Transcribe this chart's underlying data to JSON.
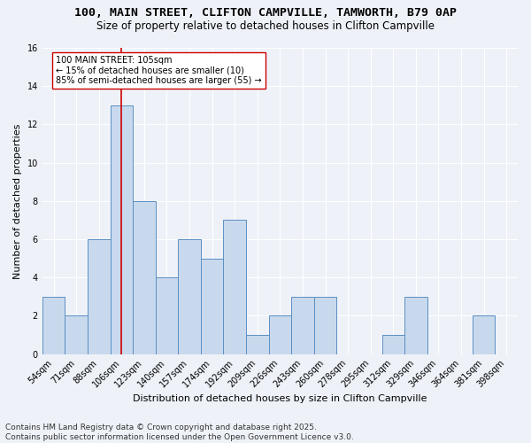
{
  "title1": "100, MAIN STREET, CLIFTON CAMPVILLE, TAMWORTH, B79 0AP",
  "title2": "Size of property relative to detached houses in Clifton Campville",
  "xlabel": "Distribution of detached houses by size in Clifton Campville",
  "ylabel": "Number of detached properties",
  "footnote1": "Contains HM Land Registry data © Crown copyright and database right 2025.",
  "footnote2": "Contains public sector information licensed under the Open Government Licence v3.0.",
  "bin_labels": [
    "54sqm",
    "71sqm",
    "88sqm",
    "106sqm",
    "123sqm",
    "140sqm",
    "157sqm",
    "174sqm",
    "192sqm",
    "209sqm",
    "226sqm",
    "243sqm",
    "260sqm",
    "278sqm",
    "295sqm",
    "312sqm",
    "329sqm",
    "346sqm",
    "364sqm",
    "381sqm",
    "398sqm"
  ],
  "bin_values": [
    3,
    2,
    6,
    13,
    8,
    4,
    6,
    5,
    7,
    1,
    2,
    3,
    3,
    0,
    0,
    1,
    3,
    0,
    0,
    2,
    0
  ],
  "bar_color": "#c9d9ed",
  "bar_edge_color": "#5a8fc3",
  "vline_color": "#cc0000",
  "annotation_text": "100 MAIN STREET: 105sqm\n← 15% of detached houses are smaller (10)\n85% of semi-detached houses are larger (55) →",
  "annotation_box_color": "#ffffff",
  "annotation_box_edge": "#cc0000",
  "ylim": [
    0,
    16
  ],
  "yticks": [
    0,
    2,
    4,
    6,
    8,
    10,
    12,
    14,
    16
  ],
  "background_color": "#eef2f8",
  "grid_color": "#ffffff",
  "title_fontsize": 9.5,
  "subtitle_fontsize": 8.5,
  "axis_label_fontsize": 8,
  "tick_fontsize": 7,
  "annotation_fontsize": 7,
  "footnote_fontsize": 6.5
}
